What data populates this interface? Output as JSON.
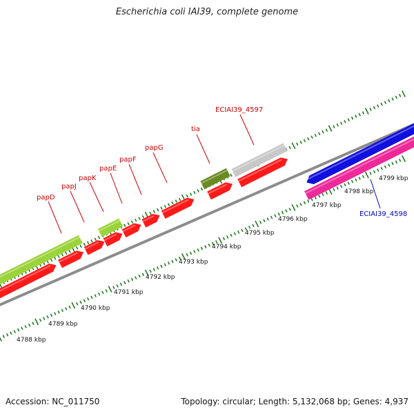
{
  "title": "Escherichia coli IAI39, complete genome",
  "footer": {
    "accession": "Accession: NC_011750",
    "summary": "Topology: circular; Length: 5,132,068 bp; Genes: 4,937"
  },
  "colors": {
    "backbone": "#8c8c8c",
    "tick": "#1e7a1e",
    "cds_red": "#ff1a1a",
    "cds_green": "#9bd43a",
    "cds_olive": "#6a8a22",
    "cds_grey": "#c8c8c8",
    "cds_blue": "#1010e0",
    "cds_pink": "#ee2a9a",
    "label_red": "#cc0000",
    "label_blue": "#0000cc"
  },
  "scale": {
    "labels": [
      {
        "id": "kbp-4788",
        "text": "4788 kbp"
      },
      {
        "id": "kbp-4789",
        "text": "4789 kbp"
      },
      {
        "id": "kbp-4790",
        "text": "4790 kbp"
      },
      {
        "id": "kbp-4791",
        "text": "4791 kbp"
      },
      {
        "id": "kbp-4792",
        "text": "4792 kbp"
      },
      {
        "id": "kbp-4793",
        "text": "4793 kbp"
      },
      {
        "id": "kbp-4794",
        "text": "4794 kbp"
      },
      {
        "id": "kbp-4795",
        "text": "4795 kbp"
      },
      {
        "id": "kbp-4796",
        "text": "4796 kbp"
      },
      {
        "id": "kbp-4797",
        "text": "4797 kbp"
      },
      {
        "id": "kbp-4798",
        "text": "4798 kbp"
      },
      {
        "id": "kbp-4799",
        "text": "4799 kbp"
      }
    ]
  },
  "gene_labels": [
    {
      "id": "papD",
      "text": "papD",
      "color": "#cc0000"
    },
    {
      "id": "papJ",
      "text": "papJ",
      "color": "#cc0000"
    },
    {
      "id": "papK",
      "text": "papK",
      "color": "#cc0000"
    },
    {
      "id": "papE",
      "text": "papE",
      "color": "#cc0000"
    },
    {
      "id": "papF",
      "text": "papF",
      "color": "#cc0000"
    },
    {
      "id": "papG",
      "text": "papG",
      "color": "#cc0000"
    },
    {
      "id": "tia",
      "text": "tia",
      "color": "#cc0000"
    },
    {
      "id": "ECIAI39_4597",
      "text": "ECIAI39_4597",
      "color": "#cc0000"
    },
    {
      "id": "ECIAI39_4598",
      "text": "ECIAI39_4598",
      "color": "#0000cc"
    }
  ]
}
